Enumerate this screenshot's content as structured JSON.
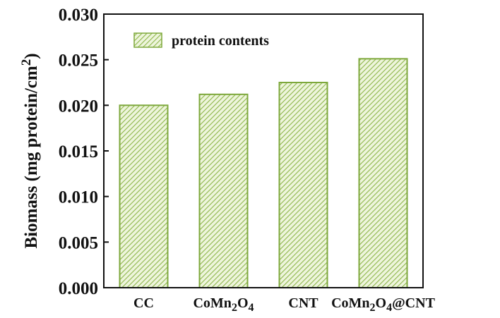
{
  "chart_data": {
    "type": "bar",
    "title": "",
    "xlabel": "",
    "ylabel": "Biomass (mg protein/cm²)",
    "ylabel_parts": {
      "main": "Biomass (mg protein/cm",
      "sup": "2",
      "close": ")"
    },
    "categories": [
      "CC",
      "CoMn₂O₄",
      "CNT",
      "CoMn₂O₄@CNT"
    ],
    "category_parts": [
      [
        {
          "t": "CC"
        }
      ],
      [
        {
          "t": "CoMn"
        },
        {
          "t": "2",
          "sub": true
        },
        {
          "t": "O"
        },
        {
          "t": "4",
          "sub": true
        }
      ],
      [
        {
          "t": "CNT"
        }
      ],
      [
        {
          "t": "CoMn"
        },
        {
          "t": "2",
          "sub": true
        },
        {
          "t": "O"
        },
        {
          "t": "4",
          "sub": true
        },
        {
          "t": "@CNT"
        }
      ]
    ],
    "series": [
      {
        "name": "protein contents",
        "values": [
          0.02,
          0.0212,
          0.0225,
          0.0251
        ]
      }
    ],
    "ylim": [
      0,
      0.03
    ],
    "yticks": [
      "0.000",
      "0.005",
      "0.010",
      "0.015",
      "0.020",
      "0.025",
      "0.030"
    ],
    "ytick_values": [
      0,
      0.005,
      0.01,
      0.015,
      0.02,
      0.025,
      0.03
    ],
    "legend": {
      "label": "protein contents",
      "placement": "top-left"
    },
    "grid": false,
    "colors": {
      "bar_edge": "#7ea83c",
      "hatch": "#8db64a",
      "bar_bg": "#eef5dc"
    }
  }
}
